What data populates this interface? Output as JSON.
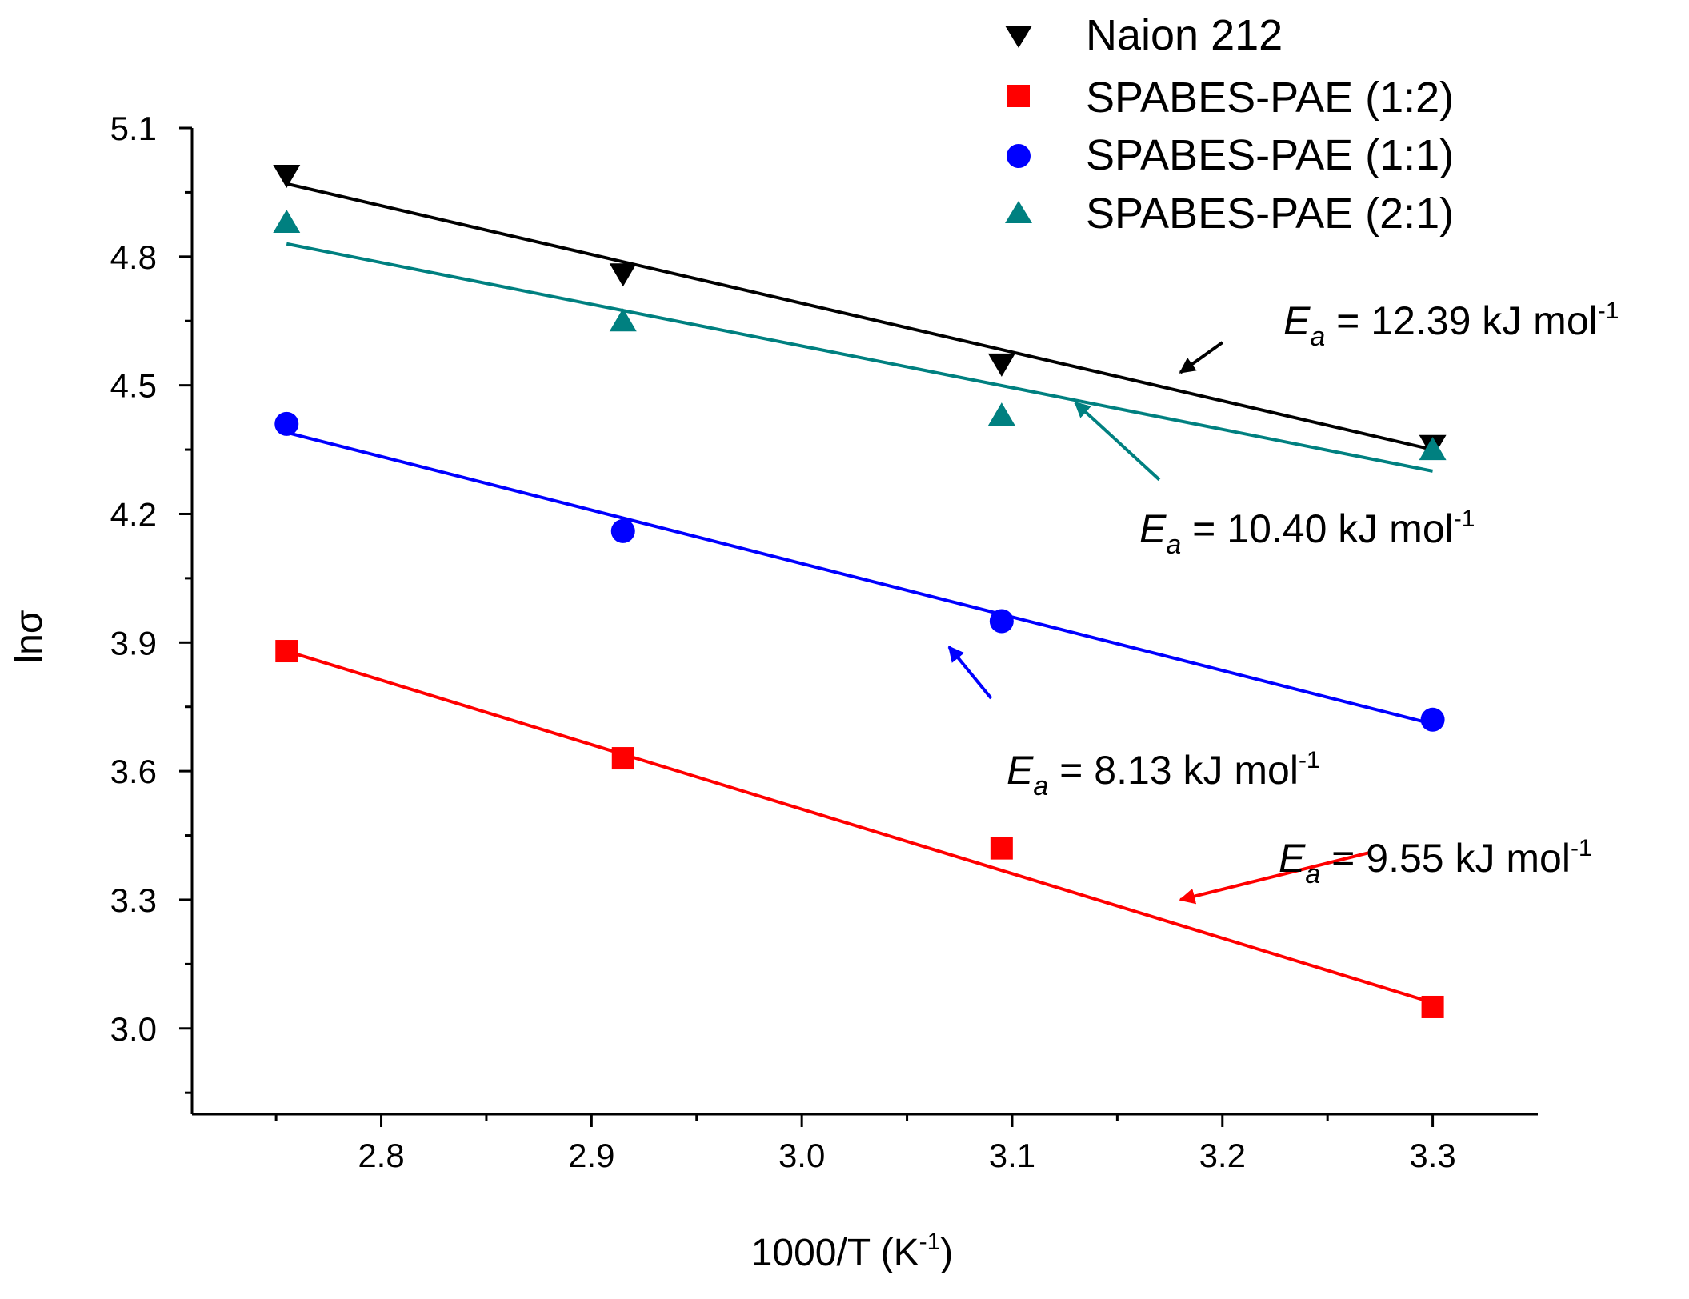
{
  "chart_data": {
    "type": "scatter",
    "xlabel": "1000/T (K",
    "xlabel_sup": "-1",
    "xlabel_suffix": ")",
    "ylabel": "lnσ",
    "xlim": [
      2.71,
      3.35
    ],
    "ylim": [
      2.8,
      5.1
    ],
    "x_ticks": [
      "2.8",
      "2.9",
      "3.0",
      "3.1",
      "3.2",
      "3.3"
    ],
    "y_ticks": [
      "3.0",
      "3.3",
      "3.6",
      "3.9",
      "4.2",
      "4.5",
      "4.8",
      "5.1"
    ],
    "legend_position": "top-right",
    "x": [
      2.755,
      2.915,
      3.095,
      3.3
    ],
    "series": [
      {
        "name": "Naion 212",
        "marker": "triangle-down",
        "color": "#000000",
        "values": [
          4.99,
          4.76,
          4.55,
          4.36
        ],
        "fit": [
          4.97,
          4.35
        ]
      },
      {
        "name": "SPABES-PAE (1:2)",
        "marker": "square",
        "color": "#ff0000",
        "values": [
          3.88,
          3.63,
          3.42,
          3.05
        ],
        "fit": [
          3.88,
          3.06
        ]
      },
      {
        "name": "SPABES-PAE (1:1)",
        "marker": "circle",
        "color": "#0000ff",
        "values": [
          4.41,
          4.16,
          3.95,
          3.72
        ],
        "fit": [
          4.39,
          3.71
        ]
      },
      {
        "name": "SPABES-PAE (2:1)",
        "marker": "triangle-up",
        "color": "#008080",
        "values": [
          4.88,
          4.65,
          4.43,
          4.35
        ],
        "fit": [
          4.83,
          4.3
        ]
      }
    ],
    "annotations": [
      {
        "series": "Naion 212",
        "symbol": "E",
        "sub": "a",
        "value": " = 12.39 kJ mol",
        "sup": "-1",
        "color": "#000000",
        "arrow_from": [
          3.2,
          4.6
        ],
        "arrow_to": [
          3.18,
          4.53
        ],
        "label_at": [
          3.18,
          4.56
        ]
      },
      {
        "series": "SPABES-PAE (2:1)",
        "symbol": "E",
        "sub": "a",
        "value": " = 10.40 kJ mol",
        "sup": "-1",
        "color": "#008080",
        "arrow_from": [
          3.17,
          4.28
        ],
        "arrow_to": [
          3.13,
          4.46
        ],
        "label_at": [
          3.1,
          4.17
        ]
      },
      {
        "series": "SPABES-PAE (1:1)",
        "symbol": "E",
        "sub": "a",
        "value": " = 8.13 kJ mol",
        "sup": "-1",
        "color": "#0000ff",
        "arrow_from": [
          3.09,
          3.77
        ],
        "arrow_to": [
          3.07,
          3.89
        ],
        "label_at": [
          3.06,
          3.6
        ]
      },
      {
        "series": "SPABES-PAE (1:2)",
        "symbol": "E",
        "sub": "a",
        "value": " = 9.55 kJ mol",
        "sup": "-1",
        "color": "#ff0000",
        "arrow_from": [
          3.27,
          3.41
        ],
        "arrow_to": [
          3.18,
          3.3
        ],
        "label_at": [
          3.18,
          3.38
        ]
      }
    ]
  }
}
